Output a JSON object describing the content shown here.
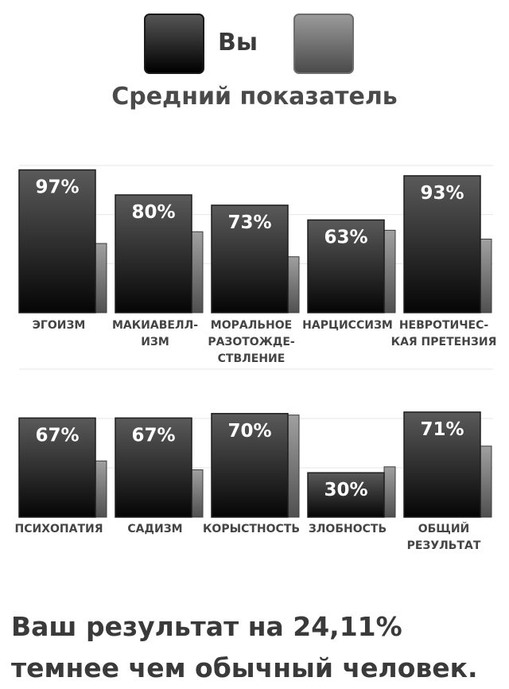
{
  "legend": {
    "you_label": "Вы",
    "avg_label": "Средний показатель"
  },
  "summary_text": "Ваш результат на 24,11% темнее чем обычный человек.",
  "colors": {
    "you_top": "#5a5a5a",
    "you_bottom": "#050505",
    "avg_top": "#a0a0a0",
    "avg_bottom": "#505050",
    "label_text": "#444444",
    "value_text": "#ffffff"
  },
  "chart_data": [
    {
      "type": "bar",
      "categories": [
        [
          "ЭГОИЗМ"
        ],
        [
          "МАКИАВЕЛЛ-",
          "ИЗМ"
        ],
        [
          "МОРАЛЬНОЕ",
          "РАЗОТОЖДЕ-",
          "СТВЛЕНИЕ"
        ],
        [
          "НАРЦИССИЗМ"
        ],
        [
          "НЕВРОТИЧЕС-",
          "КАЯ ПРЕТЕНЗИЯ"
        ]
      ],
      "series": [
        {
          "name": "Вы",
          "values": [
            97,
            80,
            73,
            63,
            93
          ],
          "labels": [
            "97%",
            "80%",
            "73%",
            "63%",
            "93%"
          ]
        },
        {
          "name": "Средний показатель",
          "values": [
            47,
            55,
            38,
            56,
            50
          ]
        }
      ],
      "ylim": [
        0,
        100
      ],
      "grid": true
    },
    {
      "type": "bar",
      "categories": [
        [
          "ПСИХОПАТИЯ"
        ],
        [
          "САДИЗМ"
        ],
        [
          "КОРЫСТНОСТЬ"
        ],
        [
          "ЗЛОБНОСТЬ"
        ],
        [
          "ОБЩИЙ",
          "РЕЗУЛЬТАТ"
        ]
      ],
      "series": [
        {
          "name": "Вы",
          "values": [
            67,
            67,
            70,
            30,
            71
          ],
          "labels": [
            "67%",
            "67%",
            "70%",
            "30%",
            "71%"
          ]
        },
        {
          "name": "Средний показатель",
          "values": [
            38,
            32,
            69,
            34,
            48
          ]
        }
      ],
      "ylim": [
        0,
        100
      ],
      "grid": true
    }
  ]
}
